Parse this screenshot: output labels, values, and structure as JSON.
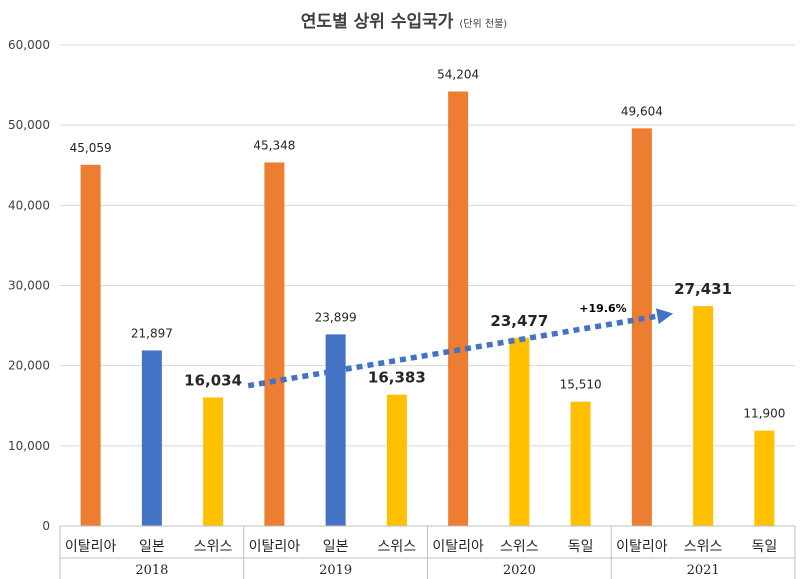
{
  "chart_data": {
    "type": "bar",
    "title": "연도별 상위 수입국가",
    "unit": "(단위 천불)",
    "ylim": [
      0,
      60000
    ],
    "yticks": [
      "0",
      "10,000",
      "20,000",
      "30,000",
      "40,000",
      "50,000",
      "60,000"
    ],
    "grid": true,
    "colors": {
      "이탈리아": "#ED7D31",
      "일본": "#4472C4",
      "스위스": "#FFC000",
      "독일": "#FFC000",
      "trend": "#4472C4"
    },
    "groups": [
      {
        "year": "2018",
        "bars": [
          {
            "label": "이탈리아",
            "value": 45059,
            "text": "45,059",
            "emphasis": false
          },
          {
            "label": "일본",
            "value": 21897,
            "text": "21,897",
            "emphasis": false
          },
          {
            "label": "스위스",
            "value": 16034,
            "text": "16,034",
            "emphasis": true
          }
        ]
      },
      {
        "year": "2019",
        "bars": [
          {
            "label": "이탈리아",
            "value": 45348,
            "text": "45,348",
            "emphasis": false
          },
          {
            "label": "일본",
            "value": 23899,
            "text": "23,899",
            "emphasis": false
          },
          {
            "label": "스위스",
            "value": 16383,
            "text": "16,383",
            "emphasis": true
          }
        ]
      },
      {
        "year": "2020",
        "bars": [
          {
            "label": "이탈리아",
            "value": 54204,
            "text": "54,204",
            "emphasis": false
          },
          {
            "label": "스위스",
            "value": 23477,
            "text": "23,477",
            "emphasis": true
          },
          {
            "label": "독일",
            "value": 15510,
            "text": "15,510",
            "emphasis": false
          }
        ]
      },
      {
        "year": "2021",
        "bars": [
          {
            "label": "이탈리아",
            "value": 49604,
            "text": "49,604",
            "emphasis": false
          },
          {
            "label": "스위스",
            "value": 27431,
            "text": "27,431",
            "emphasis": true
          },
          {
            "label": "독일",
            "value": 11900,
            "text": "11,900",
            "emphasis": false
          }
        ]
      }
    ],
    "annotation": {
      "text": "+19.6%",
      "from": 17500,
      "to": 26500
    }
  }
}
